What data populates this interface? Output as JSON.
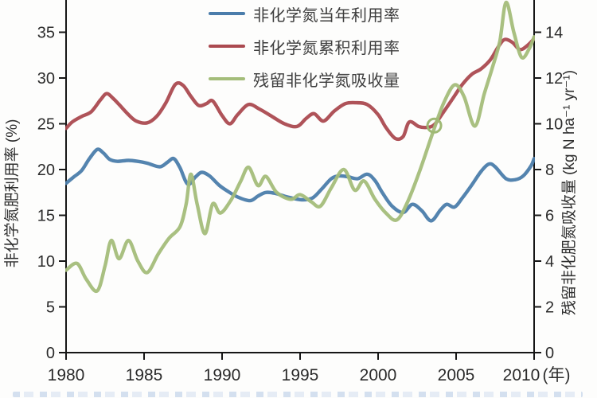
{
  "chart_data": {
    "type": "line",
    "x_axis": {
      "ticks": [
        1980,
        1985,
        1990,
        1995,
        2000,
        2005,
        2010
      ],
      "unit_label": "(年)",
      "range": [
        1980,
        2010
      ]
    },
    "y_left": {
      "label": "非化学氮肥利用率 (%)",
      "ticks": [
        0,
        5,
        10,
        15,
        20,
        25,
        30,
        35
      ],
      "visible_top_value": 38.5
    },
    "y_right": {
      "label": "残留非化肥氮吸收量 (kg N ha⁻¹ yr⁻¹)",
      "ticks": [
        0,
        2,
        4,
        6,
        8,
        10,
        12,
        14
      ],
      "visible_top_value": 15.4
    },
    "grid": false,
    "legend_position": "top-center",
    "series": [
      {
        "name": "非化学氮当年利用率",
        "axis": "left",
        "color": "#4b7dab",
        "points": [
          [
            1980,
            18.5
          ],
          [
            1980.5,
            19.2
          ],
          [
            1981,
            19.9
          ],
          [
            1981.5,
            21.2
          ],
          [
            1982,
            22.2
          ],
          [
            1982.4,
            21.8
          ],
          [
            1982.8,
            21.1
          ],
          [
            1983.3,
            20.9
          ],
          [
            1984,
            21.0
          ],
          [
            1984.6,
            20.9
          ],
          [
            1985.2,
            20.7
          ],
          [
            1986,
            20.3
          ],
          [
            1986.5,
            20.8
          ],
          [
            1986.9,
            21.2
          ],
          [
            1987.3,
            20.2
          ],
          [
            1987.8,
            18.4
          ],
          [
            1988.3,
            19.2
          ],
          [
            1988.7,
            19.7
          ],
          [
            1989.2,
            19.3
          ],
          [
            1989.8,
            18.3
          ],
          [
            1990.3,
            17.7
          ],
          [
            1991,
            17.0
          ],
          [
            1991.8,
            16.6
          ],
          [
            1992.3,
            17.1
          ],
          [
            1992.8,
            17.5
          ],
          [
            1993.4,
            17.4
          ],
          [
            1994.2,
            17.0
          ],
          [
            1995.1,
            16.7
          ],
          [
            1995.8,
            16.9
          ],
          [
            1996.4,
            17.9
          ],
          [
            1997,
            19.0
          ],
          [
            1997.5,
            19.3
          ],
          [
            1998.1,
            19.2
          ],
          [
            1998.7,
            19.0
          ],
          [
            1999.3,
            19.5
          ],
          [
            1999.8,
            18.8
          ],
          [
            2000.3,
            17.4
          ],
          [
            2000.9,
            16.0
          ],
          [
            2001.6,
            15.3
          ],
          [
            2002.2,
            16.2
          ],
          [
            2002.8,
            15.5
          ],
          [
            2003.4,
            14.4
          ],
          [
            2004,
            15.6
          ],
          [
            2004.4,
            16.2
          ],
          [
            2004.9,
            15.9
          ],
          [
            2005.4,
            16.9
          ],
          [
            2006,
            18.3
          ],
          [
            2006.6,
            19.8
          ],
          [
            2007.1,
            20.6
          ],
          [
            2007.5,
            20.3
          ],
          [
            2008.2,
            19.0
          ],
          [
            2008.8,
            18.9
          ],
          [
            2009.3,
            19.3
          ],
          [
            2009.8,
            20.4
          ],
          [
            2010,
            21.2
          ]
        ]
      },
      {
        "name": "非化学氮累积利用率",
        "axis": "left",
        "color": "#ab4a50",
        "points": [
          [
            1980,
            24.5
          ],
          [
            1980.4,
            25.2
          ],
          [
            1981,
            25.8
          ],
          [
            1981.6,
            26.3
          ],
          [
            1982.2,
            27.6
          ],
          [
            1982.6,
            28.3
          ],
          [
            1983,
            27.8
          ],
          [
            1983.4,
            27.1
          ],
          [
            1984,
            26.0
          ],
          [
            1984.5,
            25.3
          ],
          [
            1985.2,
            25.1
          ],
          [
            1985.8,
            25.8
          ],
          [
            1986.4,
            27.3
          ],
          [
            1987,
            29.3
          ],
          [
            1987.5,
            29.2
          ],
          [
            1988,
            28.0
          ],
          [
            1988.5,
            27.0
          ],
          [
            1989,
            27.2
          ],
          [
            1989.4,
            27.5
          ],
          [
            1990,
            25.9
          ],
          [
            1990.5,
            25.0
          ],
          [
            1991,
            26.0
          ],
          [
            1991.7,
            27.1
          ],
          [
            1992.4,
            26.6
          ],
          [
            1993.2,
            25.8
          ],
          [
            1994,
            25.0
          ],
          [
            1994.8,
            24.7
          ],
          [
            1995.4,
            25.6
          ],
          [
            1995.9,
            26.1
          ],
          [
            1996.5,
            25.3
          ],
          [
            1997.2,
            26.4
          ],
          [
            1997.9,
            27.2
          ],
          [
            1998.6,
            27.3
          ],
          [
            1999.3,
            27.1
          ],
          [
            2000,
            26.0
          ],
          [
            2000.5,
            24.6
          ],
          [
            2001.1,
            23.4
          ],
          [
            2001.6,
            23.6
          ],
          [
            2002,
            25.2
          ],
          [
            2002.6,
            24.7
          ],
          [
            2003.1,
            24.6
          ],
          [
            2003.6,
            24.9
          ],
          [
            2004.2,
            26.3
          ],
          [
            2004.8,
            27.8
          ],
          [
            2005.4,
            29.3
          ],
          [
            2006,
            30.4
          ],
          [
            2006.6,
            31.0
          ],
          [
            2007.2,
            32.0
          ],
          [
            2007.7,
            33.4
          ],
          [
            2008.1,
            34.2
          ],
          [
            2008.6,
            33.9
          ],
          [
            2009.1,
            33.1
          ],
          [
            2009.6,
            33.6
          ],
          [
            2010,
            34.3
          ]
        ]
      },
      {
        "name": "残留非化学氮吸收量",
        "axis": "right",
        "color": "#a4bd7a",
        "points": [
          [
            1980,
            3.6
          ],
          [
            1980.7,
            3.9
          ],
          [
            1981.3,
            3.2
          ],
          [
            1982,
            2.7
          ],
          [
            1982.5,
            3.8
          ],
          [
            1982.9,
            4.9
          ],
          [
            1983.4,
            4.1
          ],
          [
            1984,
            4.9
          ],
          [
            1984.6,
            4.0
          ],
          [
            1985.2,
            3.5
          ],
          [
            1985.9,
            4.3
          ],
          [
            1986.6,
            5.0
          ],
          [
            1987.3,
            5.5
          ],
          [
            1987.7,
            6.5
          ],
          [
            1988,
            7.8
          ],
          [
            1988.4,
            6.5
          ],
          [
            1988.9,
            5.2
          ],
          [
            1989.4,
            6.5
          ],
          [
            1989.9,
            6.1
          ],
          [
            1990.6,
            6.7
          ],
          [
            1991.2,
            7.5
          ],
          [
            1991.7,
            8.1
          ],
          [
            1992.3,
            7.3
          ],
          [
            1992.8,
            7.7
          ],
          [
            1993.5,
            7.0
          ],
          [
            1994.4,
            6.7
          ],
          [
            1995,
            6.9
          ],
          [
            1995.7,
            6.6
          ],
          [
            1996.3,
            6.4
          ],
          [
            1997,
            7.2
          ],
          [
            1997.8,
            8.0
          ],
          [
            1998.5,
            7.1
          ],
          [
            1999.1,
            7.5
          ],
          [
            1999.8,
            6.7
          ],
          [
            2000.5,
            6.1
          ],
          [
            2001.2,
            5.8
          ],
          [
            2001.9,
            6.6
          ],
          [
            2002.7,
            8.0
          ],
          [
            2003.5,
            9.6
          ],
          [
            2004.2,
            10.9
          ],
          [
            2004.9,
            11.7
          ],
          [
            2005.5,
            11.2
          ],
          [
            2006.2,
            9.9
          ],
          [
            2006.8,
            11.3
          ],
          [
            2007.3,
            12.4
          ],
          [
            2007.8,
            13.6
          ],
          [
            2008.2,
            15.3
          ],
          [
            2008.7,
            14.0
          ],
          [
            2009.2,
            12.9
          ],
          [
            2009.7,
            13.3
          ],
          [
            2010,
            13.8
          ]
        ]
      }
    ],
    "annotation_circle": {
      "x": 2003.6,
      "y_left": 24.8,
      "color": "#9fb974"
    }
  },
  "legend": {
    "items": [
      {
        "label": "非化学氮当年利用率"
      },
      {
        "label": "非化学氮累积利用率"
      },
      {
        "label": "残留非化学氮吸收量"
      }
    ]
  }
}
